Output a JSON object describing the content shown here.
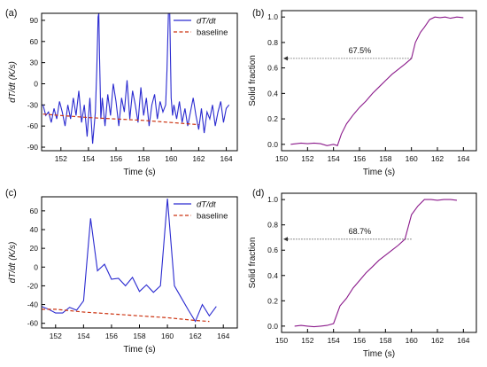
{
  "chart_data": [
    {
      "panel": "(a)",
      "type": "line",
      "xlabel": "Time (s)",
      "ylabel": "dT/dt (K/s)",
      "xlim": [
        150.6,
        164.8
      ],
      "ylim": [
        -95,
        100
      ],
      "xticks": [
        152,
        154,
        156,
        158,
        160,
        162,
        164
      ],
      "yticks": [
        -90,
        -60,
        -30,
        0,
        30,
        60,
        90
      ],
      "legend_position": "top-right",
      "series": [
        {
          "name": "dT/dt",
          "color": "#2a2ad0",
          "style": "solid",
          "x": [
            150.7,
            150.9,
            151.1,
            151.3,
            151.5,
            151.7,
            151.9,
            152.1,
            152.3,
            152.5,
            152.7,
            152.9,
            153.1,
            153.3,
            153.5,
            153.7,
            153.9,
            154.1,
            154.3,
            154.5,
            154.6,
            154.7,
            154.75,
            154.8,
            154.9,
            155.0,
            155.2,
            155.4,
            155.6,
            155.8,
            156.0,
            156.2,
            156.4,
            156.6,
            156.8,
            157.0,
            157.2,
            157.4,
            157.6,
            157.8,
            158.0,
            158.2,
            158.4,
            158.6,
            158.8,
            159.0,
            159.2,
            159.4,
            159.6,
            159.7,
            159.8,
            159.9,
            160.0,
            160.1,
            160.2,
            160.4,
            160.6,
            160.8,
            161.0,
            161.2,
            161.4,
            161.6,
            161.8,
            162.0,
            162.2,
            162.4,
            162.6,
            162.8,
            163.0,
            163.2,
            163.4,
            163.6,
            163.8,
            164.0,
            164.2
          ],
          "y": [
            -30,
            -45,
            -40,
            -55,
            -35,
            -50,
            -25,
            -40,
            -60,
            -30,
            -50,
            -20,
            -45,
            -10,
            -55,
            -30,
            -75,
            -20,
            -85,
            -40,
            20,
            95,
            100,
            40,
            -50,
            -20,
            -60,
            -15,
            -45,
            0,
            -25,
            -60,
            -20,
            -40,
            5,
            -50,
            -10,
            -30,
            -55,
            -5,
            -45,
            -20,
            -60,
            -30,
            -15,
            -50,
            -25,
            -40,
            -30,
            20,
            100,
            100,
            -20,
            -45,
            -30,
            -50,
            -25,
            -55,
            -35,
            -60,
            -40,
            -20,
            -45,
            -65,
            -35,
            -70,
            -40,
            -50,
            -30,
            -60,
            -40,
            -25,
            -55,
            -35,
            -30
          ]
        },
        {
          "name": "baseline",
          "color": "#cc3311",
          "style": "dashed",
          "x": [
            150.7,
            152,
            154,
            156,
            158,
            160,
            162
          ],
          "y": [
            -43,
            -45,
            -48,
            -50,
            -52,
            -55,
            -58
          ]
        }
      ]
    },
    {
      "panel": "(b)",
      "type": "line",
      "xlabel": "Time (s)",
      "ylabel": "Solid fraction",
      "xlim": [
        150,
        165
      ],
      "ylim": [
        -0.05,
        1.05
      ],
      "xticks": [
        150,
        152,
        154,
        156,
        158,
        160,
        162,
        164
      ],
      "yticks": [
        0.0,
        0.2,
        0.4,
        0.6,
        0.8,
        1.0
      ],
      "annotation": {
        "text": "67.5%",
        "value": 0.675,
        "x_from": 160,
        "x_to": 150
      },
      "series": [
        {
          "color": "#8b1a8b",
          "style": "solid",
          "x": [
            150.7,
            151.5,
            152.0,
            152.5,
            153.0,
            153.5,
            154.0,
            154.3,
            154.6,
            155.0,
            155.5,
            156.0,
            156.5,
            157.0,
            157.5,
            158.0,
            158.5,
            159.0,
            159.5,
            160.0,
            160.3,
            160.7,
            161.0,
            161.4,
            161.8,
            162.2,
            162.6,
            163.0,
            163.5,
            164.0
          ],
          "y": [
            0.0,
            0.01,
            0.005,
            0.01,
            0.005,
            -0.01,
            0.0,
            -0.01,
            0.08,
            0.16,
            0.23,
            0.29,
            0.34,
            0.4,
            0.45,
            0.5,
            0.55,
            0.59,
            0.63,
            0.675,
            0.8,
            0.88,
            0.92,
            0.98,
            1.0,
            0.995,
            1.0,
            0.99,
            1.0,
            0.995
          ]
        }
      ]
    },
    {
      "panel": "(c)",
      "type": "line",
      "xlabel": "Time (s)",
      "ylabel": "dT/dt (K/s)",
      "xlim": [
        151,
        165
      ],
      "ylim": [
        -65,
        75
      ],
      "xticks": [
        152,
        154,
        156,
        158,
        160,
        162,
        164
      ],
      "yticks": [
        -60,
        -40,
        -20,
        0,
        20,
        40,
        60
      ],
      "legend_position": "top-right",
      "series": [
        {
          "name": "dT/dt",
          "color": "#2a2ad0",
          "style": "solid",
          "x": [
            151.0,
            151.5,
            152.0,
            152.5,
            153.0,
            153.5,
            154.0,
            154.5,
            155.0,
            155.5,
            156.0,
            156.5,
            157.0,
            157.5,
            158.0,
            158.5,
            159.0,
            159.5,
            160.0,
            160.5,
            161.0,
            161.5,
            162.0,
            162.5,
            163.0,
            163.5
          ],
          "y": [
            -42,
            -45,
            -49,
            -49,
            -43,
            -46,
            -36,
            52,
            -4,
            3,
            -13,
            -12,
            -20,
            -11,
            -26,
            -19,
            -27,
            -20,
            73,
            -20,
            -33,
            -46,
            -58,
            -40,
            -52,
            -42
          ]
        },
        {
          "name": "baseline",
          "color": "#cc3311",
          "style": "dashed",
          "x": [
            151,
            152,
            154,
            156,
            158,
            160,
            162,
            163
          ],
          "y": [
            -45,
            -45,
            -48,
            -50,
            -52,
            -54,
            -57,
            -58
          ]
        }
      ]
    },
    {
      "panel": "(d)",
      "type": "line",
      "xlabel": "Time (s)",
      "ylabel": "Solid fraction",
      "xlim": [
        150,
        165
      ],
      "ylim": [
        -0.05,
        1.05
      ],
      "xticks": [
        150,
        152,
        154,
        156,
        158,
        160,
        162,
        164
      ],
      "yticks": [
        0.0,
        0.2,
        0.4,
        0.6,
        0.8,
        1.0
      ],
      "annotation": {
        "text": "68.7%",
        "value": 0.687,
        "x_from": 160,
        "x_to": 150
      },
      "series": [
        {
          "color": "#8b1a8b",
          "style": "solid",
          "x": [
            151.0,
            151.5,
            152.0,
            152.5,
            153.0,
            153.5,
            154.0,
            154.5,
            155.0,
            155.5,
            156.0,
            156.5,
            157.0,
            157.5,
            158.0,
            158.5,
            159.0,
            159.5,
            160.0,
            160.5,
            161.0,
            161.5,
            162.0,
            162.5,
            163.0,
            163.5
          ],
          "y": [
            0.0,
            0.005,
            0.0,
            -0.005,
            0.0,
            0.005,
            0.02,
            0.16,
            0.22,
            0.3,
            0.36,
            0.42,
            0.47,
            0.52,
            0.56,
            0.6,
            0.64,
            0.687,
            0.88,
            0.95,
            1.0,
            1.0,
            0.995,
            1.0,
            1.0,
            0.995
          ]
        }
      ]
    }
  ]
}
